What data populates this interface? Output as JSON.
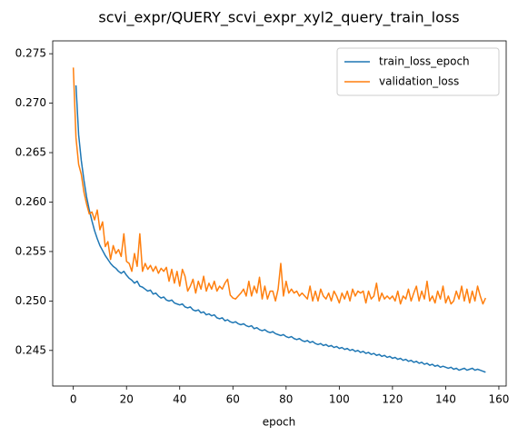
{
  "chart_data": {
    "type": "line",
    "title": "scvi_expr/QUERY_scvi_expr_xyl2_query_train_loss",
    "xlabel": "epoch",
    "legend": "upper right",
    "grid": false,
    "x": [
      0,
      1,
      2,
      3,
      4,
      5,
      6,
      7,
      8,
      9,
      10,
      11,
      12,
      13,
      14,
      15,
      16,
      17,
      18,
      19,
      20,
      21,
      22,
      23,
      24,
      25,
      26,
      27,
      28,
      29,
      30,
      31,
      32,
      33,
      34,
      35,
      36,
      37,
      38,
      39,
      40,
      41,
      42,
      43,
      44,
      45,
      46,
      47,
      48,
      49,
      50,
      51,
      52,
      53,
      54,
      55,
      56,
      57,
      58,
      59,
      60,
      61,
      62,
      63,
      64,
      65,
      66,
      67,
      68,
      69,
      70,
      71,
      72,
      73,
      74,
      75,
      76,
      77,
      78,
      79,
      80,
      81,
      82,
      83,
      84,
      85,
      86,
      87,
      88,
      89,
      90,
      91,
      92,
      93,
      94,
      95,
      96,
      97,
      98,
      99,
      100,
      101,
      102,
      103,
      104,
      105,
      106,
      107,
      108,
      109,
      110,
      111,
      112,
      113,
      114,
      115,
      116,
      117,
      118,
      119,
      120,
      121,
      122,
      123,
      124,
      125,
      126,
      127,
      128,
      129,
      130,
      131,
      132,
      133,
      134,
      135,
      136,
      137,
      138,
      139,
      140,
      141,
      142,
      143,
      144,
      145,
      146,
      147,
      148,
      149,
      150,
      151,
      152,
      153,
      154,
      155
    ],
    "series": [
      {
        "name": "train_loss_epoch",
        "color": "#1f77b4",
        "values": [
          null,
          0.2718,
          0.2668,
          0.2642,
          0.2622,
          0.2605,
          0.2592,
          0.2581,
          0.2571,
          0.2563,
          0.2556,
          0.2551,
          0.2546,
          0.2542,
          0.2538,
          0.2535,
          0.2533,
          0.253,
          0.2528,
          0.253,
          0.2526,
          0.2523,
          0.2521,
          0.2518,
          0.252,
          0.2515,
          0.2514,
          0.2512,
          0.251,
          0.2511,
          0.2507,
          0.2508,
          0.2505,
          0.2503,
          0.2504,
          0.2501,
          0.25,
          0.2501,
          0.2498,
          0.2497,
          0.2496,
          0.2497,
          0.2494,
          0.2493,
          0.2494,
          0.2491,
          0.249,
          0.2491,
          0.2488,
          0.2489,
          0.2486,
          0.2487,
          0.2485,
          0.2486,
          0.2483,
          0.2482,
          0.2483,
          0.248,
          0.2481,
          0.2479,
          0.2478,
          0.2479,
          0.2477,
          0.2476,
          0.2477,
          0.2475,
          0.2474,
          0.2475,
          0.2472,
          0.2473,
          0.2471,
          0.247,
          0.2471,
          0.2469,
          0.2468,
          0.2469,
          0.2467,
          0.2466,
          0.2465,
          0.2466,
          0.2464,
          0.2463,
          0.2464,
          0.2462,
          0.2461,
          0.2462,
          0.246,
          0.2459,
          0.246,
          0.2458,
          0.2459,
          0.2457,
          0.2456,
          0.2457,
          0.2455,
          0.2456,
          0.2454,
          0.2455,
          0.2453,
          0.2454,
          0.2452,
          0.2453,
          0.2451,
          0.2452,
          0.245,
          0.2451,
          0.2449,
          0.245,
          0.2448,
          0.2449,
          0.2447,
          0.2448,
          0.2446,
          0.2447,
          0.2445,
          0.2446,
          0.2444,
          0.2445,
          0.2443,
          0.2444,
          0.2442,
          0.2443,
          0.2441,
          0.2442,
          0.244,
          0.2441,
          0.2439,
          0.244,
          0.2438,
          0.2439,
          0.2437,
          0.2438,
          0.2436,
          0.2437,
          0.2435,
          0.2436,
          0.2434,
          0.2435,
          0.2433,
          0.2434,
          0.2433,
          0.2432,
          0.2433,
          0.2431,
          0.2432,
          0.243,
          0.2431,
          0.2432,
          0.243,
          0.2431,
          0.2432,
          0.243,
          0.2431,
          0.243,
          0.2429,
          0.2428
        ]
      },
      {
        "name": "validation_loss",
        "color": "#ff7f0e",
        "values": [
          0.2736,
          0.2665,
          0.2638,
          0.2628,
          0.261,
          0.2598,
          0.2588,
          0.259,
          0.2582,
          0.2592,
          0.2572,
          0.258,
          0.2555,
          0.256,
          0.2542,
          0.2556,
          0.2548,
          0.2552,
          0.2545,
          0.2568,
          0.254,
          0.2538,
          0.253,
          0.2548,
          0.2535,
          0.2568,
          0.253,
          0.2538,
          0.2532,
          0.2536,
          0.253,
          0.2535,
          0.2528,
          0.2533,
          0.253,
          0.2534,
          0.252,
          0.2532,
          0.2518,
          0.253,
          0.2515,
          0.2532,
          0.2525,
          0.251,
          0.2515,
          0.2522,
          0.2508,
          0.252,
          0.2512,
          0.2525,
          0.251,
          0.2518,
          0.2512,
          0.252,
          0.251,
          0.2515,
          0.2512,
          0.2518,
          0.2522,
          0.2506,
          0.2503,
          0.2502,
          0.2505,
          0.2508,
          0.2512,
          0.2505,
          0.252,
          0.2505,
          0.2515,
          0.2508,
          0.2524,
          0.2502,
          0.2515,
          0.2502,
          0.251,
          0.251,
          0.25,
          0.2512,
          0.2538,
          0.2505,
          0.252,
          0.2508,
          0.2512,
          0.2508,
          0.251,
          0.2505,
          0.2508,
          0.2505,
          0.2502,
          0.2515,
          0.25,
          0.251,
          0.25,
          0.2512,
          0.2505,
          0.2502,
          0.2508,
          0.25,
          0.251,
          0.2505,
          0.2498,
          0.2508,
          0.2502,
          0.251,
          0.25,
          0.2512,
          0.2505,
          0.251,
          0.2508,
          0.251,
          0.2498,
          0.251,
          0.2502,
          0.2505,
          0.2518,
          0.25,
          0.2508,
          0.2502,
          0.2505,
          0.2502,
          0.2505,
          0.25,
          0.251,
          0.2497,
          0.2505,
          0.2502,
          0.2512,
          0.25,
          0.2508,
          0.2515,
          0.25,
          0.251,
          0.2502,
          0.252,
          0.25,
          0.2505,
          0.2498,
          0.251,
          0.2502,
          0.2515,
          0.2498,
          0.2505,
          0.2497,
          0.25,
          0.251,
          0.2502,
          0.2515,
          0.25,
          0.2512,
          0.2498,
          0.251,
          0.25,
          0.2515,
          0.2505,
          0.2497,
          0.2503
        ]
      }
    ],
    "xlim": [
      -7.75,
      162.75
    ],
    "xticks": [
      0,
      20,
      40,
      60,
      80,
      100,
      120,
      140,
      160
    ],
    "ylim": [
      0.2414,
      0.2763
    ],
    "yticks": [
      0.245,
      {
        "value": 0.25,
        "label": "0.250"
      },
      0.255,
      {
        "value": 0.26,
        "label": "0.260"
      },
      0.265,
      {
        "value": 0.27,
        "label": "0.270"
      },
      0.275
    ]
  }
}
